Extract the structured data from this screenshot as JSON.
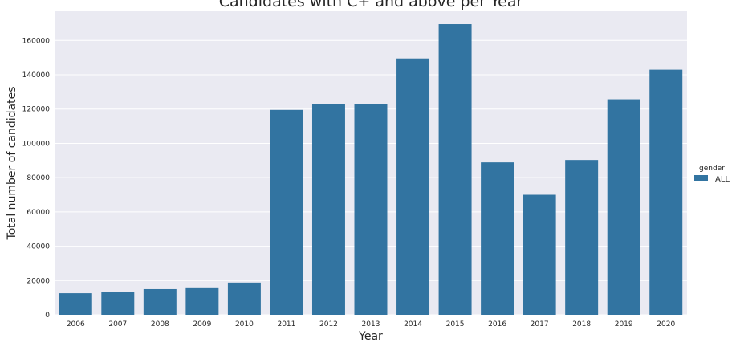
{
  "chart_data": {
    "type": "bar",
    "title": "Candidates with C+ and above per Year",
    "xlabel": "Year",
    "ylabel": "Total number of candidates",
    "categories": [
      "2006",
      "2007",
      "2008",
      "2009",
      "2010",
      "2011",
      "2012",
      "2013",
      "2014",
      "2015",
      "2016",
      "2017",
      "2018",
      "2019",
      "2020"
    ],
    "series": [
      {
        "name": "ALL",
        "values": [
          12600,
          13500,
          15000,
          16000,
          18800,
          119500,
          123000,
          123000,
          149500,
          169500,
          88900,
          70000,
          90300,
          125700,
          143000
        ]
      }
    ],
    "yticks": [
      "0",
      "20000",
      "40000",
      "60000",
      "80000",
      "100000",
      "120000",
      "140000",
      "160000"
    ],
    "ylim": [
      0,
      177000
    ],
    "grid": true,
    "legend": {
      "title": "gender",
      "placement": "right"
    },
    "colors": {
      "bar": "#3274a1",
      "plot_background": "#eaeaf2",
      "grid": "#ffffff"
    }
  }
}
